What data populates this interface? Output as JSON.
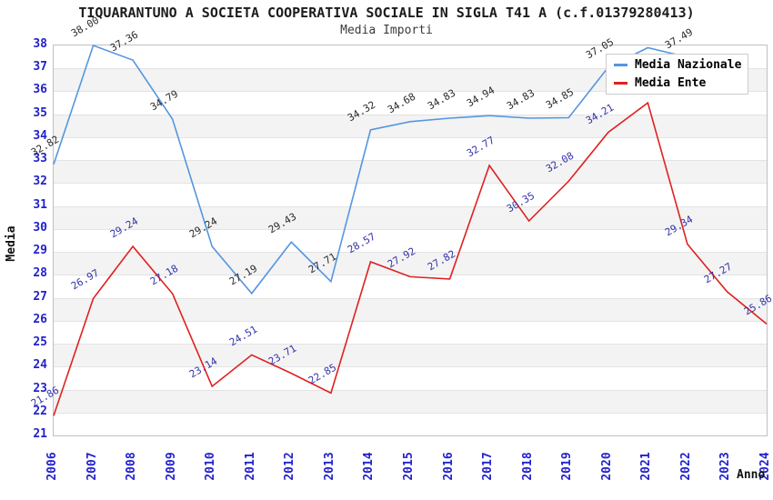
{
  "chart_data": {
    "type": "line",
    "title": "TIQUARANTUNO A SOCIETA COOPERATIVA SOCIALE IN SIGLA T41 A (c.f.01379280413)",
    "subtitle": "Media Importi",
    "xlabel": "Anno",
    "ylabel": "Media",
    "ylim": [
      21,
      38
    ],
    "y_tick_step": 1,
    "x": [
      2006,
      2007,
      2008,
      2009,
      2010,
      2011,
      2012,
      2013,
      2014,
      2015,
      2016,
      2017,
      2018,
      2019,
      2020,
      2021,
      2022,
      2023,
      2024
    ],
    "grid": "horizontal gridlines each unit, alternating light-gray bands on even-to-odd intervals",
    "legend_position": "top-right",
    "series": [
      {
        "name": "Media Nazionale",
        "color": "#5596e0",
        "values": [
          32.82,
          38.0,
          37.36,
          34.79,
          29.24,
          27.19,
          29.43,
          27.71,
          34.32,
          34.68,
          34.83,
          34.94,
          34.83,
          34.85,
          37.05,
          37.9,
          37.49,
          null,
          null
        ],
        "labels": [
          "32.82",
          "38.00",
          "37.36",
          "34.79",
          "29.24",
          "27.19",
          "29.43",
          "27.71",
          "34.32",
          "34.68",
          "34.83",
          "34.94",
          "34.83",
          "34.85",
          "37.05",
          null,
          "37.49",
          null,
          null
        ]
      },
      {
        "name": "Media Ente",
        "color": "#e02020",
        "values": [
          21.86,
          26.97,
          29.24,
          27.18,
          23.14,
          24.51,
          23.71,
          22.85,
          28.57,
          27.92,
          27.82,
          32.77,
          30.35,
          32.08,
          34.21,
          35.5,
          29.34,
          27.27,
          25.86
        ],
        "labels": [
          "21.86",
          "26.97",
          "29.24",
          "27.18",
          "23.14",
          "24.51",
          "23.71",
          "22.85",
          "28.57",
          "27.92",
          "27.82",
          "32.77",
          "30.35",
          "32.08",
          "34.21",
          null,
          "29.34",
          "27.27",
          "25.86"
        ]
      }
    ]
  },
  "colors": {
    "axis_tick_text": "#2222cc",
    "nazionale_label_text": "#2b2b2b",
    "ente_label_text": "#3333aa",
    "grid_band": "#f3f3f3",
    "grid_line": "#e3e3e3",
    "plot_border": "#c0c0c0",
    "legend_border": "#cccccc",
    "background": "#ffffff"
  }
}
